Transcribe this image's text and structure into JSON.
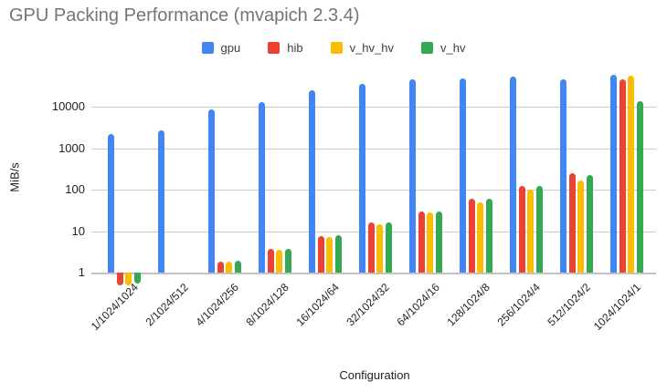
{
  "title": "GPU Packing Performance (mvapich 2.3.4)",
  "chart_data": {
    "type": "bar",
    "title": "GPU Packing Performance (mvapich 2.3.4)",
    "xlabel": "Configuration",
    "ylabel": "MiB/s",
    "y_scale": "log",
    "y_ticks": [
      1,
      10,
      100,
      1000,
      10000
    ],
    "ylim": [
      0.45,
      83000
    ],
    "grid": true,
    "legend_position": "top",
    "categories": [
      "1/1024/1024",
      "2/1024/512",
      "4/1024/256",
      "8/1024/128",
      "16/1024/64",
      "32/1024/32",
      "64/1024/16",
      "128/1024/8",
      "256/1024/4",
      "512/1024/2",
      "1024/1024/1"
    ],
    "series": [
      {
        "name": "gpu",
        "color": "#4285F4",
        "values": [
          2200,
          2750,
          8800,
          13000,
          25000,
          36000,
          46000,
          48000,
          53000,
          46000,
          59000
        ]
      },
      {
        "name": "hib",
        "color": "#EA4335",
        "values": [
          0.5,
          null,
          1.85,
          3.8,
          7.6,
          16,
          30,
          60,
          123,
          250,
          46000
        ]
      },
      {
        "name": "v_hv_hv",
        "color": "#FBBC04",
        "values": [
          0.5,
          null,
          1.8,
          3.6,
          7.3,
          14.5,
          28,
          49,
          100,
          166,
          57000
        ]
      },
      {
        "name": "v_hv",
        "color": "#34A853",
        "values": [
          0.55,
          null,
          1.9,
          3.8,
          7.8,
          16,
          30,
          60,
          120,
          225,
          13500
        ]
      }
    ]
  },
  "colors": {
    "title_gray": "#757575",
    "axis_text": "#222222",
    "gridline": "#cccccc"
  }
}
